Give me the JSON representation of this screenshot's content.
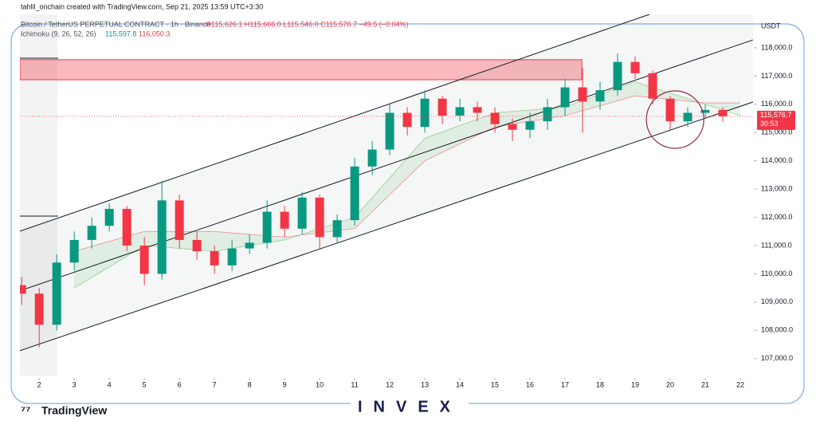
{
  "chart_data": {
    "type": "candlestick",
    "credit": "tahlil_onchain created with TradingView.com, Sep 21, 2025 13:59 UTC+3:30",
    "symbol": "Bitcoin / TetherUS PERPETUAL CONTRACT · 1h · Binance",
    "ohlc_text": "O115,626.1 H115,666.0 L115,546.0 C115,576.7 −49.5 (−0.04%)",
    "indicator": {
      "name": "Ichimoku (9, 26, 52, 26)",
      "value_a": "115,597.8",
      "value_b": "116,050.3"
    },
    "unit": "USDT",
    "countdown": "30:53",
    "brand": "TradingView",
    "watermark": "INVEX",
    "up_color": "#089981",
    "down_color": "#f23645",
    "xlim": [
      1.45,
      22.25
    ],
    "xticks": [
      2,
      3,
      4,
      5,
      6,
      7,
      8,
      9,
      10,
      11,
      12,
      13,
      14,
      15,
      16,
      17,
      18,
      19,
      20,
      21,
      22
    ],
    "ylim": [
      106400,
      119100
    ],
    "yticks": [
      {
        "value": 107000,
        "label": "107,000.0"
      },
      {
        "value": 108000,
        "label": "108,000.0"
      },
      {
        "value": 109000,
        "label": "109,000.0"
      },
      {
        "value": 110000,
        "label": "110,000.0"
      },
      {
        "value": 111000,
        "label": "111,000.0"
      },
      {
        "value": 112000,
        "label": "112,000.0"
      },
      {
        "value": 113000,
        "label": "113,000.0"
      },
      {
        "value": 114000,
        "label": "114,000.0"
      },
      {
        "value": 115000,
        "label": "115,000.0"
      },
      {
        "value": 116000,
        "label": "116,000.0"
      },
      {
        "value": 117000,
        "label": "117,000.0"
      },
      {
        "value": 118000,
        "label": "118,000.0"
      }
    ],
    "last_price": {
      "value": 115576.7,
      "label": "115,576.7"
    },
    "x": [
      1.5,
      2,
      2.5,
      3,
      3.5,
      4,
      4.5,
      5,
      5.5,
      6,
      6.5,
      7,
      7.5,
      8,
      8.5,
      9,
      9.5,
      10,
      10.5,
      11,
      11.5,
      12,
      12.5,
      13,
      13.5,
      14,
      14.5,
      15,
      15.5,
      16,
      16.5,
      17,
      17.5,
      18,
      18.5,
      19,
      19.5,
      20,
      20.5,
      21,
      21.5
    ],
    "open": [
      109600,
      109300,
      108200,
      110400,
      111200,
      111700,
      112300,
      111000,
      110000,
      112600,
      111200,
      110800,
      110300,
      110900,
      111100,
      112200,
      111600,
      112700,
      111300,
      111900,
      113800,
      114400,
      115700,
      115200,
      116200,
      115600,
      115900,
      115700,
      115300,
      115100,
      115400,
      115900,
      116600,
      116100,
      116500,
      117500,
      117100,
      116200,
      115400,
      115700,
      115800
    ],
    "high": [
      109900,
      109500,
      110700,
      111500,
      112000,
      112500,
      112400,
      111300,
      113300,
      112800,
      111500,
      111000,
      111200,
      111400,
      112600,
      112400,
      112900,
      112800,
      112100,
      114100,
      114700,
      116000,
      115900,
      116500,
      116300,
      116200,
      116100,
      115900,
      115500,
      115700,
      116200,
      116900,
      117300,
      116800,
      117800,
      117700,
      117200,
      116300,
      115900,
      116000,
      115900
    ],
    "low": [
      108900,
      107400,
      108000,
      110100,
      110900,
      111500,
      110800,
      109600,
      109800,
      110900,
      110500,
      110000,
      110100,
      110700,
      110900,
      111300,
      111400,
      110900,
      111100,
      111700,
      113500,
      114200,
      114900,
      115000,
      115300,
      115400,
      115400,
      115000,
      114700,
      114800,
      115100,
      115600,
      115000,
      115800,
      116300,
      116900,
      116000,
      115100,
      115200,
      115500,
      115400
    ],
    "close": [
      109300,
      108200,
      110400,
      111200,
      111700,
      112300,
      111000,
      110000,
      112600,
      111200,
      110800,
      110300,
      110900,
      111100,
      112200,
      111600,
      112700,
      111300,
      111900,
      113800,
      114400,
      115700,
      115200,
      116200,
      115600,
      115900,
      115700,
      115300,
      115100,
      115400,
      115900,
      116600,
      116100,
      116500,
      117500,
      117100,
      116200,
      115400,
      115700,
      115800,
      115577
    ],
    "cloud": {
      "x": [
        3,
        5,
        7,
        9,
        11,
        13,
        15,
        17,
        19,
        21,
        22
      ],
      "span_a": [
        109500,
        111000,
        110800,
        111200,
        112000,
        114800,
        115700,
        115900,
        116800,
        116000,
        115600
      ],
      "span_b": [
        110800,
        111500,
        111500,
        111300,
        111600,
        114000,
        115200,
        115600,
        116300,
        116050,
        116050
      ]
    },
    "channel": [
      {
        "x": [
          1.45,
          19.41
        ],
        "y": [
          111510,
          119185
        ]
      },
      {
        "x": [
          1.45,
          22.36
        ],
        "y": [
          109400,
          118280
        ]
      },
      {
        "x": [
          1.45,
          22.36
        ],
        "y": [
          107280,
          116080
        ]
      }
    ],
    "zone": {
      "x": [
        1.45,
        17.48
      ],
      "y": [
        116870,
        117580
      ]
    },
    "circle": {
      "x": 20.14,
      "y": 115460
    }
  }
}
